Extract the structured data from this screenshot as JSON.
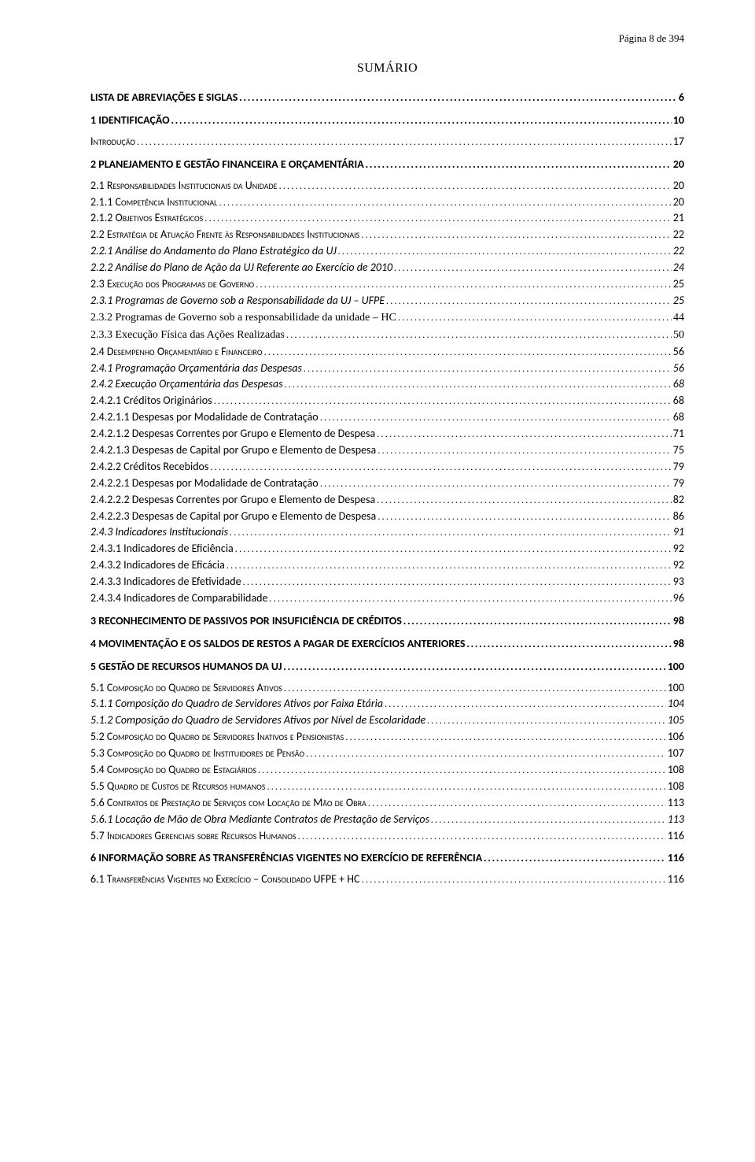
{
  "header": {
    "text": "Página 8 de 394"
  },
  "title": "SUMÁRIO",
  "colors": {
    "text": "#000000",
    "background": "#ffffff"
  },
  "toc": [
    {
      "label": "LISTA DE ABREVIAÇÕES E SIGLAS",
      "page": "6",
      "level": 0
    },
    {
      "label": "1 IDENTIFICAÇÃO",
      "page": "10",
      "level": 0
    },
    {
      "label": "Introdução",
      "page": "17",
      "level": 1,
      "noGap": true
    },
    {
      "label": "2 PLANEJAMENTO E GESTÃO FINANCEIRA E ORÇAMENTÁRIA",
      "page": "20",
      "level": 0
    },
    {
      "label": "2.1 Responsabilidades Institucionais da Unidade",
      "page": "20",
      "level": 1,
      "noGap": true
    },
    {
      "label": "2.1.1 Competência Institucional",
      "page": "20",
      "level": 1
    },
    {
      "label": "2.1.2 Objetivos Estratégicos",
      "page": "21",
      "level": 1
    },
    {
      "label": "2.2 Estratégia de Atuação Frente às Responsabilidades Institucionais",
      "page": "22",
      "level": 1
    },
    {
      "label": "2.2.1 Análise do Andamento do Plano Estratégico da UJ",
      "page": "22",
      "level": 2
    },
    {
      "label": "2.2.2 Análise do Plano de Ação da UJ Referente ao Exercício de 2010",
      "page": "24",
      "level": 2
    },
    {
      "label": "2.3 Execução dos Programas de Governo",
      "page": "25",
      "level": 1
    },
    {
      "label": "2.3.1 Programas de Governo sob a Responsabilidade da UJ – UFPE",
      "page": "25",
      "level": 2
    },
    {
      "label": "2.3.2 Programas de Governo sob a responsabilidade da unidade – HC",
      "page": "44",
      "level": 3
    },
    {
      "label": "2.3.3 Execução Física das Ações Realizadas",
      "page": "50",
      "level": 3
    },
    {
      "label": "2.4 Desempenho Orçamentário e Financeiro",
      "page": "56",
      "level": 1
    },
    {
      "label": "2.4.1 Programação Orçamentária das Despesas",
      "page": "56",
      "level": 2
    },
    {
      "label": "2.4.2 Execução Orçamentária das Despesas",
      "page": "68",
      "level": 2
    },
    {
      "label": "2.4.2.1 Créditos Originários",
      "page": "68",
      "level": 4
    },
    {
      "label": "2.4.2.1.1 Despesas por Modalidade de Contratação",
      "page": "68",
      "level": 4
    },
    {
      "label": "2.4.2.1.2 Despesas Correntes por Grupo e Elemento de Despesa",
      "page": "71",
      "level": 4
    },
    {
      "label": "2.4.2.1.3  Despesas de Capital por Grupo e Elemento de Despesa",
      "page": "75",
      "level": 4
    },
    {
      "label": "2.4.2.2 Créditos Recebidos",
      "page": "79",
      "level": 4
    },
    {
      "label": "2.4.2.2.1 Despesas por Modalidade de Contratação",
      "page": "79",
      "level": 4
    },
    {
      "label": "2.4.2.2.2 Despesas Correntes por Grupo e Elemento de Despesa",
      "page": "82",
      "level": 4
    },
    {
      "label": "2.4.2.2.3 Despesas de Capital por Grupo e Elemento de Despesa",
      "page": "86",
      "level": 4
    },
    {
      "label": "2.4.3 Indicadores Institucionais",
      "page": "91",
      "level": 2
    },
    {
      "label": "2.4.3.1 Indicadores de Eficiência",
      "page": "92",
      "level": 4
    },
    {
      "label": "2.4.3.2 Indicadores de Eficácia",
      "page": "92",
      "level": 4
    },
    {
      "label": "2.4.3.3 Indicadores de Efetividade",
      "page": "93",
      "level": 4
    },
    {
      "label": "2.4.3.4 Indicadores de Comparabilidade",
      "page": "96",
      "level": 4
    },
    {
      "label": "3 RECONHECIMENTO DE PASSIVOS POR INSUFICIÊNCIA DE CRÉDITOS",
      "page": "98",
      "level": 0
    },
    {
      "label": "4 MOVIMENTAÇÃO E OS SALDOS DE RESTOS A PAGAR DE EXERCÍCIOS ANTERIORES",
      "page": "98",
      "level": 0
    },
    {
      "label": "5 GESTÃO DE RECURSOS HUMANOS DA UJ",
      "page": "100",
      "level": 0
    },
    {
      "label": "5.1 Composição do Quadro de Servidores Ativos",
      "page": "100",
      "level": 1,
      "noGap": true
    },
    {
      "label": "5.1.1 Composição do Quadro de Servidores Ativos por Faixa Etária",
      "page": "104",
      "level": 2
    },
    {
      "label": "5.1.2 Composição do Quadro de Servidores Ativos por Nível de Escolaridade",
      "page": "105",
      "level": 2
    },
    {
      "label": "5.2 Composição do Quadro de Servidores Inativos e Pensionistas",
      "page": "106",
      "level": 1
    },
    {
      "label": "5.3 Composição do Quadro de Instituidores de Pensão",
      "page": "107",
      "level": 1
    },
    {
      "label": "5.4 Composição do Quadro de Estagiários",
      "page": "108",
      "level": 1
    },
    {
      "label": "5.5 Quadro de Custos de Recursos humanos",
      "page": "108",
      "level": 1
    },
    {
      "label": "5.6 Contratos de Prestação de Serviços com Locação de Mão de Obra",
      "page": "113",
      "level": 1
    },
    {
      "label": "5.6.1 Locação de Mão de Obra Mediante Contratos de Prestação de Serviços",
      "page": "113",
      "level": 2
    },
    {
      "label": "5.7 Indicadores Gerenciais sobre Recursos Humanos",
      "page": "116",
      "level": 1
    },
    {
      "label": "6 INFORMAÇÃO SOBRE AS TRANSFERÊNCIAS VIGENTES NO EXERCÍCIO DE REFERÊNCIA",
      "page": "116",
      "level": 0
    },
    {
      "label": "6.1 Transferências Vigentes no Exercício – Consolidado UFPE + HC",
      "page": "116",
      "level": 1,
      "noGap": true
    }
  ]
}
